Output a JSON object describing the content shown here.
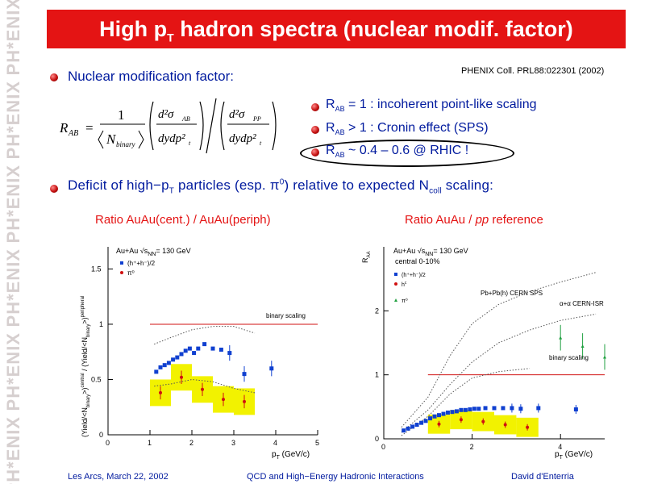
{
  "watermark": {
    "text": "PH*ENIX"
  },
  "title": {
    "main": "High p",
    "sub": "T",
    "rest": " hadron spectra (nuclear modif. factor)"
  },
  "nmf": {
    "label": "Nuclear modification factor:",
    "citation": "PHENIX Coll. PRL88:022301 (2002)"
  },
  "formula": {
    "lhs": "R",
    "lhs_sub": "AB",
    "equals": "=",
    "one": "1",
    "nbin": "N",
    "nbin_sub": "binary",
    "num_left": "d²σ",
    "num_left_sub": "AB",
    "den_left": "dydp²",
    "den_left_sub": "t",
    "num_right": "d²σ",
    "num_right_sub": "PP",
    "den_right": "dydp²",
    "den_right_sub": "t"
  },
  "rab": [
    {
      "r": "R",
      "sub": "AB",
      "text": " = 1 : incoherent point-like scaling"
    },
    {
      "r": "R",
      "sub": "AB",
      "text": " > 1 : Cronin effect (SPS)"
    },
    {
      "r": "R",
      "sub": "AB",
      "text": " ~ 0.4 – 0.6  @ RHIC !"
    }
  ],
  "deficit": {
    "pre": "Deficit of high−p",
    "pt_sub": "T",
    "mid": " particles (esp. π",
    "pi_sup": "0",
    "post": ") relative to expected N",
    "ncoll_sub": "coll",
    "end": " scaling:"
  },
  "left_plot": {
    "title": "Ratio AuAu(cent.) / AuAu(periph)",
    "legend_title": "Au+Au √s",
    "legend_title_sub": "NN",
    "legend_title_end": "= 130 GeV",
    "legend_h": "(h⁺+h⁻)/2",
    "legend_pi": "π⁰",
    "ref_label": "binary scaling",
    "ylabel": "(Yield/<N",
    "ylabel_mid": "binary",
    "ylabel_mid2": ">)",
    "ylabel_central": "central",
    "ylabel_div": " / (Yield/<N",
    "ylabel_end": ">)",
    "ylabel_peripheral": "peripheral",
    "xlabel": "p",
    "xlabel_sub": "T",
    "xlabel_end": " (GeV/c)",
    "x_ticks": [
      "0",
      "1",
      "2",
      "3",
      "4",
      "5"
    ],
    "y_ticks": [
      "0",
      "0.5",
      "1",
      "1.5"
    ]
  },
  "right_plot": {
    "title_pre": "Ratio AuAu / ",
    "title_em": "pp",
    "title_post": " reference",
    "legend_title": "Au+Au √s",
    "legend_title_sub": "NN",
    "legend_title_end": "= 130 GeV",
    "legend_sub": "central 0-10%",
    "legend_h": "(h⁺+h⁻)/2",
    "legend_hc": "h",
    "legend_hc_sup": "c",
    "legend_pi": "π⁰",
    "ref_sps": "Pb+Pb(h) CERN SPS",
    "ref_isr": "α+α CERN-ISR",
    "ref_label": "binary scaling",
    "ylabel": "R",
    "ylabel_sub": "AA",
    "xlabel": "p",
    "xlabel_sub": "T",
    "xlabel_end": " (GeV/c)",
    "x_ticks": [
      "0",
      "2",
      "4"
    ],
    "y_ticks": [
      "0",
      "1",
      "2"
    ]
  },
  "footer": {
    "left": "Les Arcs, March 22, 2002",
    "center": "QCD and High−Energy Hadronic Interactions",
    "right": "David d'Enterria"
  },
  "colors": {
    "banner": "#e41414",
    "text_blue": "#001a9e",
    "text_red": "#e41414",
    "band": "#f2f200"
  },
  "chart_data": [
    {
      "type": "scatter",
      "title": "Ratio AuAu(cent.) / AuAu(periph)",
      "xlabel": "pT (GeV/c)",
      "ylabel": "(Yield/<Nbinary>)central / (Yield/<Nbinary>)peripheral",
      "xlim": [
        0,
        5
      ],
      "ylim": [
        0,
        1.7
      ],
      "reference_line": {
        "label": "binary scaling",
        "y": 1.0
      },
      "series": [
        {
          "name": "(h⁺+h⁻)/2",
          "x": [
            1.15,
            1.25,
            1.35,
            1.45,
            1.55,
            1.65,
            1.75,
            1.85,
            1.95,
            2.05,
            2.15,
            2.3,
            2.5,
            2.7,
            2.9,
            3.25,
            3.9
          ],
          "y": [
            0.57,
            0.61,
            0.63,
            0.65,
            0.68,
            0.7,
            0.73,
            0.76,
            0.78,
            0.74,
            0.78,
            0.82,
            0.78,
            0.77,
            0.74,
            0.55,
            0.6
          ]
        },
        {
          "name": "π⁰",
          "x": [
            1.25,
            1.75,
            2.25,
            2.75,
            3.25
          ],
          "y": [
            0.38,
            0.52,
            0.41,
            0.32,
            0.3
          ]
        }
      ]
    },
    {
      "type": "scatter",
      "title": "Ratio AuAu / pp reference",
      "xlabel": "pT (GeV/c)",
      "ylabel": "RAA",
      "xlim": [
        0,
        5
      ],
      "ylim": [
        0,
        3
      ],
      "reference_line": {
        "label": "binary scaling",
        "y": 1.0
      },
      "series": [
        {
          "name": "(h⁺+h⁻)/2",
          "x": [
            0.45,
            0.55,
            0.65,
            0.75,
            0.85,
            0.95,
            1.05,
            1.15,
            1.25,
            1.35,
            1.45,
            1.55,
            1.65,
            1.75,
            1.85,
            1.95,
            2.05,
            2.15,
            2.3,
            2.5,
            2.7,
            2.9,
            3.1,
            3.5,
            4.35
          ],
          "y": [
            0.13,
            0.16,
            0.19,
            0.22,
            0.25,
            0.28,
            0.32,
            0.35,
            0.37,
            0.39,
            0.41,
            0.42,
            0.43,
            0.45,
            0.45,
            0.46,
            0.47,
            0.47,
            0.48,
            0.48,
            0.48,
            0.48,
            0.47,
            0.48,
            0.46
          ]
        },
        {
          "name": "π⁰",
          "x": [
            1.25,
            1.75,
            2.25,
            2.75,
            3.25
          ],
          "y": [
            0.23,
            0.3,
            0.27,
            0.22,
            0.18
          ]
        },
        {
          "name": "α+α CERN-ISR",
          "x": [
            4.0,
            4.5,
            5.0
          ],
          "y": [
            1.58,
            1.45,
            1.28
          ]
        }
      ]
    }
  ]
}
